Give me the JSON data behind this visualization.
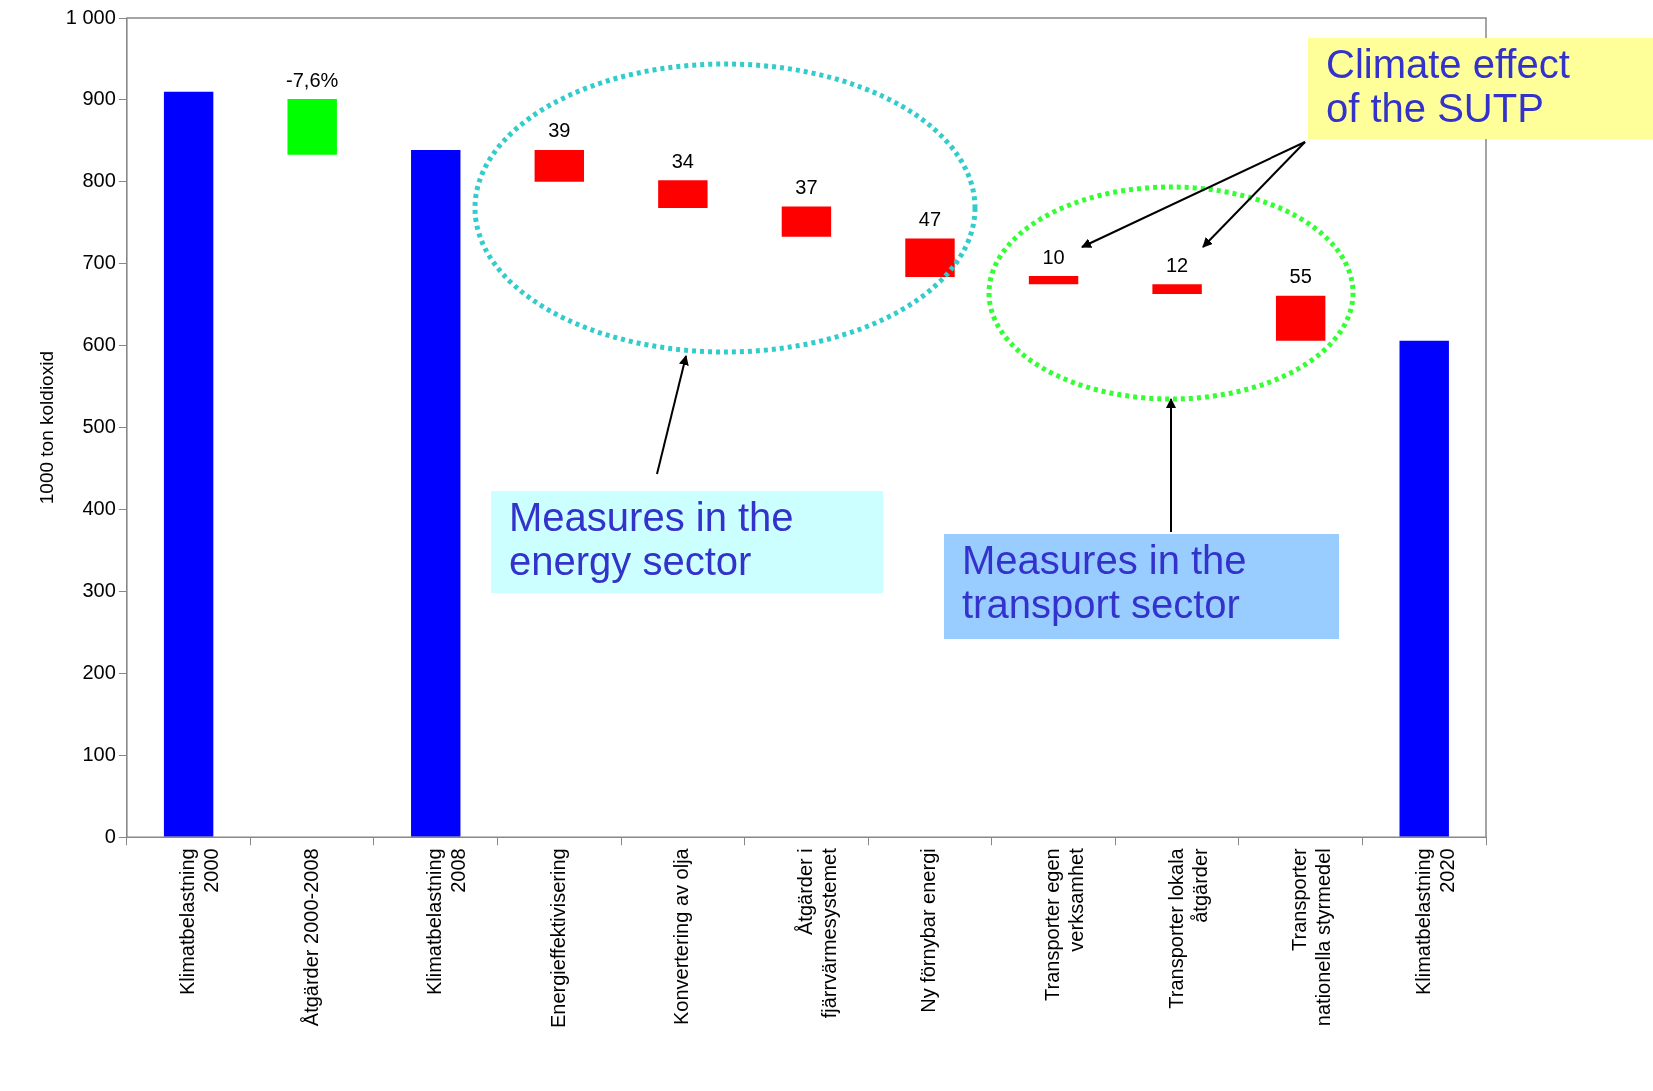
{
  "chart_data": {
    "type": "bar",
    "ylabel": "1000 ton koldioxid",
    "categories": [
      "Klimatbelastning\n2000",
      "Åtgärder 2000-2008",
      "Klimatbelastning\n2008",
      "Energieffektivisering",
      "Konvertering av olja",
      "Åtgärder i\nfjärrvärmesystemet",
      "Ny förnybar energi",
      "Transporter egen\nverksamhet",
      "Transporter lokala\nåtgärder",
      "Transporter\nnationella styrmedel",
      "Klimatbelastning\n2020"
    ],
    "values": [
      910,
      68,
      839,
      39,
      34,
      37,
      47,
      10,
      12,
      55,
      606
    ],
    "base": [
      0,
      833,
      0,
      800,
      768,
      733,
      684,
      675,
      663,
      606,
      0
    ],
    "colors": [
      "#0000ff",
      "#00ff00",
      "#0000ff",
      "#ff0000",
      "#ff0000",
      "#ff0000",
      "#ff0000",
      "#ff0000",
      "#ff0000",
      "#ff0000",
      "#0000ff"
    ],
    "value_labels": [
      null,
      null,
      null,
      "39",
      "34",
      "37",
      "47",
      "10",
      "12",
      "55",
      null
    ],
    "ylim": [
      0,
      1000
    ],
    "yticks": [
      0,
      100,
      200,
      300,
      400,
      500,
      600,
      700,
      800,
      900,
      {
        "value": 1000,
        "label": "1 000"
      }
    ],
    "grid": false,
    "legend": false,
    "annotations": [
      {
        "text": "-7,6%",
        "x": "Åtgärder 2000-2008",
        "y": 901
      },
      "Climate effect\nof the SUTP",
      "Measures in the\nenergy sector",
      "Measures in the\ntransport sector"
    ]
  }
}
